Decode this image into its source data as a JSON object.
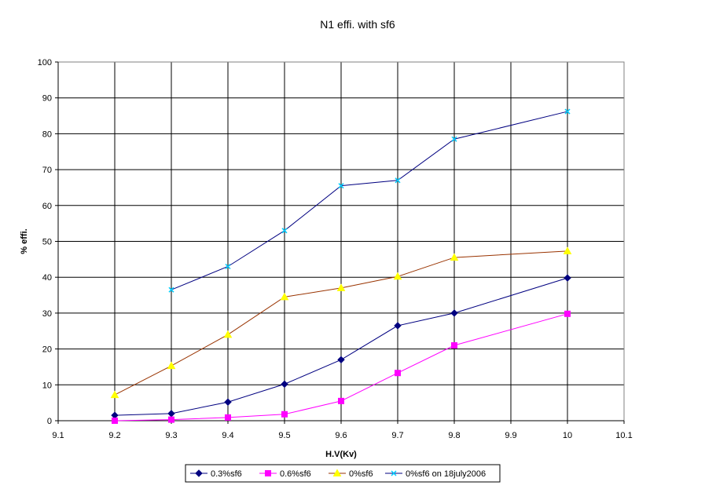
{
  "chart_data": {
    "type": "line",
    "title": "N1 effi. with sf6",
    "xlabel": "H.V(Kv)",
    "ylabel": "% effi.",
    "xlim": [
      9.1,
      10.1
    ],
    "ylim": [
      0,
      100
    ],
    "xticks": [
      "9.1",
      "9.2",
      "9.3",
      "9.4",
      "9.5",
      "9.6",
      "9.7",
      "9.8",
      "9.9",
      "10",
      "10.1"
    ],
    "yticks": [
      "0",
      "10",
      "20",
      "30",
      "40",
      "50",
      "60",
      "70",
      "80",
      "90",
      "100"
    ],
    "grid": true,
    "legend_position": "bottom",
    "series": [
      {
        "name": "0.3%sf6",
        "color": "#000080",
        "marker": "diamond",
        "x": [
          9.2,
          9.3,
          9.4,
          9.5,
          9.6,
          9.7,
          9.8,
          10
        ],
        "y": [
          1.5,
          2,
          5.2,
          10.2,
          17,
          26.5,
          30,
          39.8
        ]
      },
      {
        "name": "0.6%sf6",
        "color": "#ff00ff",
        "marker": "square",
        "x": [
          9.2,
          9.3,
          9.4,
          9.5,
          9.6,
          9.7,
          9.8,
          10
        ],
        "y": [
          0,
          0.3,
          0.9,
          1.8,
          5.5,
          13.3,
          21,
          29.8
        ]
      },
      {
        "name": "0%sf6",
        "color": "#ffff00",
        "line_color": "#993300",
        "marker": "triangle",
        "x": [
          9.2,
          9.3,
          9.4,
          9.5,
          9.6,
          9.7,
          9.8,
          10
        ],
        "y": [
          7.2,
          15.3,
          24,
          34.5,
          37,
          40.2,
          45.5,
          47.3
        ]
      },
      {
        "name": "0%sf6 on 18july2006",
        "color": "#00ccff",
        "line_color": "#000080",
        "marker": "x",
        "x": [
          9.3,
          9.4,
          9.5,
          9.6,
          9.7,
          9.8,
          10
        ],
        "y": [
          36.5,
          43,
          53,
          65.5,
          67,
          78.5,
          86.2
        ]
      }
    ]
  }
}
